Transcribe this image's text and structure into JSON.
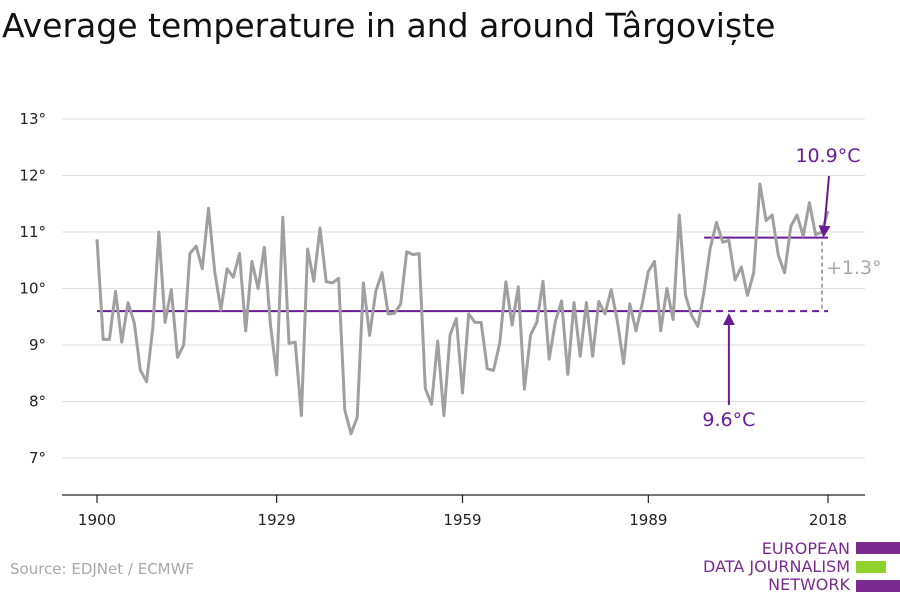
{
  "title": "Average temperature in and around Târgoviște",
  "source": "Source: EDJNet / ECMWF",
  "logo": {
    "lines": [
      "EUROPEAN",
      "DATA JOURNALISM",
      "NETWORK"
    ],
    "colors": {
      "text": "#7b2a90",
      "bar_purple": "#7b2a90",
      "bar_green": "#8fd22e"
    }
  },
  "colors": {
    "series": "#a0a0a0",
    "reference": "#6a1b9a",
    "diff": "#a8a8a8",
    "grid": "#dedede",
    "axis": "#222222"
  },
  "annotations": {
    "start_label": "9.6°C",
    "end_label": "10.9°C",
    "diff_label": "+1.3°"
  },
  "chart_data": {
    "type": "line",
    "title": "Average temperature in and around Târgoviște",
    "xlabel": "",
    "ylabel": "",
    "x_ticks": [
      1900,
      1929,
      1959,
      1989,
      2018
    ],
    "y_ticks": [
      "7°",
      "8°",
      "9°",
      "10°",
      "11°",
      "12°",
      "13°"
    ],
    "y_tick_values": [
      7,
      8,
      9,
      10,
      11,
      12,
      13
    ],
    "xlim": [
      1900,
      2018
    ],
    "ylim": [
      6.3,
      13.3
    ],
    "grid": true,
    "series": [
      {
        "x": [
          1900,
          1901,
          1902,
          1903,
          1904,
          1905,
          1906,
          1907,
          1908,
          1909,
          1910,
          1911,
          1912,
          1913,
          1914,
          1915,
          1916,
          1917,
          1918,
          1919,
          1920,
          1921,
          1922,
          1923,
          1924,
          1925,
          1926,
          1927,
          1928,
          1929,
          1930,
          1931,
          1932,
          1933,
          1934,
          1935,
          1936,
          1937,
          1938,
          1939,
          1940,
          1941,
          1942,
          1943,
          1944,
          1945,
          1946,
          1947,
          1948,
          1949,
          1950,
          1951,
          1952,
          1953,
          1954,
          1955,
          1956,
          1957,
          1958,
          1959,
          1960,
          1961,
          1962,
          1963,
          1964,
          1965,
          1966,
          1967,
          1968,
          1969,
          1970,
          1971,
          1972,
          1973,
          1974,
          1975,
          1976,
          1977,
          1978,
          1979,
          1980,
          1981,
          1982,
          1983,
          1984,
          1985,
          1986,
          1987,
          1988,
          1989,
          1990,
          1991,
          1992,
          1993,
          1994,
          1995,
          1996,
          1997,
          1998,
          1999,
          2000,
          2001,
          2002,
          2003,
          2004,
          2005,
          2006,
          2007,
          2008,
          2009,
          2010,
          2011,
          2012,
          2013,
          2014,
          2015,
          2016,
          2017,
          2018
        ],
        "values": [
          10.87,
          9.1,
          9.1,
          9.95,
          9.05,
          9.75,
          9.4,
          8.55,
          8.35,
          9.3,
          11.0,
          9.4,
          9.98,
          8.78,
          9.0,
          10.62,
          10.75,
          10.35,
          11.42,
          10.3,
          9.62,
          10.35,
          10.2,
          10.62,
          9.25,
          10.48,
          10.0,
          10.73,
          9.35,
          8.47,
          11.26,
          9.03,
          9.05,
          7.75,
          10.7,
          10.13,
          11.07,
          10.12,
          10.1,
          10.18,
          7.85,
          7.43,
          7.72,
          10.1,
          9.17,
          9.95,
          10.28,
          9.55,
          9.56,
          9.72,
          10.65,
          10.6,
          10.62,
          8.23,
          7.95,
          9.07,
          7.75,
          9.18,
          9.47,
          8.15,
          9.55,
          9.4,
          9.4,
          8.58,
          8.55,
          9.03,
          10.12,
          9.35,
          10.03,
          8.22,
          9.18,
          9.4,
          10.13,
          8.75,
          9.42,
          9.78,
          8.48,
          9.75,
          8.8,
          9.75,
          8.8,
          9.77,
          9.55,
          9.98,
          9.42,
          8.67,
          9.73,
          9.25,
          9.73,
          10.3,
          10.48,
          9.25,
          10.0,
          9.45,
          11.3,
          9.88,
          9.52,
          9.33,
          9.95,
          10.72,
          11.17,
          10.82,
          10.85,
          10.15,
          10.38,
          9.88,
          10.28,
          11.85,
          11.2,
          11.3,
          10.58,
          10.28,
          11.1,
          11.3,
          10.93,
          11.52,
          10.95,
          11.0,
          11.37
        ]
      }
    ],
    "reference_lines": [
      {
        "label": "9.6°C",
        "value": 9.6,
        "x_from": 1900,
        "x_to": 2018
      },
      {
        "label": "10.9°C",
        "value": 10.9,
        "x_from": 1998,
        "x_to": 2018
      }
    ]
  }
}
